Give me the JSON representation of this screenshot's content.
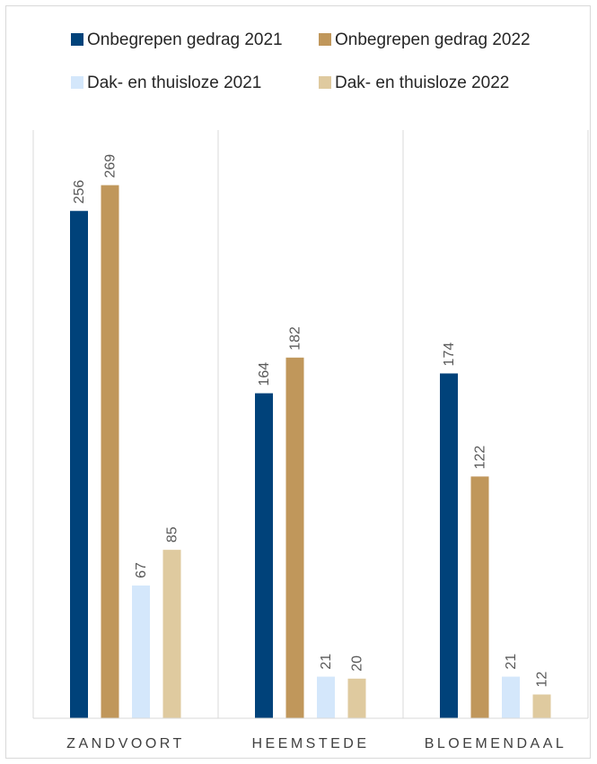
{
  "chart_data": {
    "type": "bar",
    "categories": [
      "ZANDVOORT",
      "HEEMSTEDE",
      "BLOEMENDAAL"
    ],
    "series": [
      {
        "name": "Onbegrepen gedrag 2021",
        "values": [
          256,
          164,
          174
        ],
        "color": "#00427a"
      },
      {
        "name": "Onbegrepen gedrag 2022",
        "values": [
          269,
          182,
          122
        ],
        "color": "#c0975b"
      },
      {
        "name": "Dak- en thuisloze 2021",
        "values": [
          67,
          21,
          21
        ],
        "color": "#d4e7fb"
      },
      {
        "name": "Dak- en thuisloze 2022",
        "values": [
          85,
          20,
          12
        ],
        "color": "#dfca9f"
      }
    ],
    "title": "",
    "xlabel": "",
    "ylabel": "",
    "ylim": [
      0,
      300
    ],
    "grid": false,
    "legend": "top",
    "data_labels": true
  }
}
